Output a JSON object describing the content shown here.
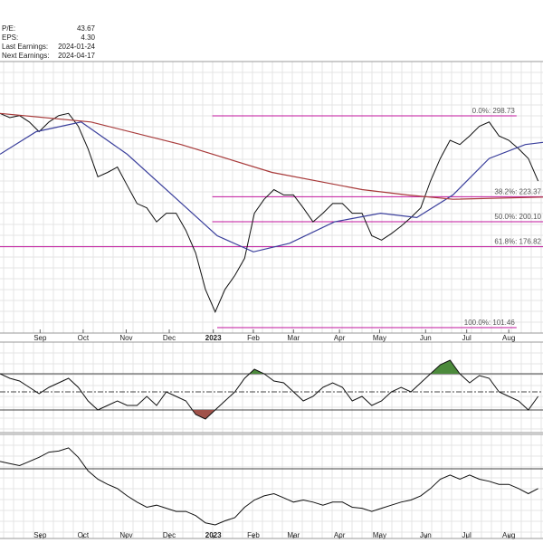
{
  "header": {
    "rows": [
      {
        "label": "P/E:",
        "value": "43.67"
      },
      {
        "label": "EPS:",
        "value": "4.30"
      },
      {
        "label": "Last Earnings:",
        "value": "2024-01-24"
      },
      {
        "label": "Next Earnings:",
        "value": "2024-04-17"
      }
    ]
  },
  "chart_data": [
    {
      "type": "line",
      "xlim": [
        0,
        55.5
      ],
      "ylim": [
        96.4,
        349.3
      ],
      "xticks": [
        {
          "value": 4.1,
          "label": "Sep"
        },
        {
          "value": 8.5,
          "label": "Oct"
        },
        {
          "value": 12.9,
          "label": "Nov"
        },
        {
          "value": 17.3,
          "label": "Dec"
        },
        {
          "value": 21.8,
          "label": "2023"
        },
        {
          "value": 25.9,
          "label": "Feb"
        },
        {
          "value": 30.0,
          "label": "Mar"
        },
        {
          "value": 34.7,
          "label": "Apr"
        },
        {
          "value": 38.8,
          "label": "May"
        },
        {
          "value": 43.5,
          "label": "Jun"
        },
        {
          "value": 47.7,
          "label": "Jul"
        },
        {
          "value": 52.0,
          "label": "Aug"
        }
      ],
      "series": [
        {
          "color": "#111111",
          "x": [
            0,
            1,
            2,
            3,
            4,
            5,
            6,
            7,
            8,
            9,
            10,
            11,
            12,
            13,
            14,
            15,
            16,
            17,
            18,
            19,
            20,
            21,
            22,
            23,
            24,
            25,
            26,
            27,
            28,
            29,
            30,
            31,
            32,
            33,
            34,
            35,
            36,
            37,
            38,
            39,
            40,
            41,
            42,
            43,
            44,
            45,
            46,
            47,
            48,
            49,
            50,
            51,
            52,
            53,
            54,
            55
          ],
          "values": [
            301,
            297,
            299,
            293,
            284,
            293,
            299,
            301,
            289,
            268,
            242,
            246,
            251,
            234,
            217,
            213,
            200,
            208,
            208,
            192,
            171,
            137,
            116,
            137,
            150,
            166,
            208,
            221,
            230,
            225,
            225,
            213,
            200,
            208,
            217,
            217,
            208,
            208,
            187,
            183,
            189,
            196,
            204,
            213,
            238,
            259,
            276,
            272,
            280,
            289,
            293,
            280,
            276,
            268,
            259,
            238
          ]
        },
        {
          "color": "#3a3f9c",
          "x": [
            0,
            3.7,
            8.3,
            13,
            17.6,
            22.2,
            25.9,
            29.6,
            34.2,
            38.9,
            42.6,
            46.3,
            50,
            53.7,
            55.5
          ],
          "values": [
            263,
            284,
            293,
            263,
            225,
            187,
            172,
            180,
            200,
            208,
            204,
            225,
            259,
            272,
            274
          ]
        },
        {
          "color": "#a83a3a",
          "x": [
            0,
            9.3,
            18.5,
            27.8,
            37,
            41.6,
            46.3,
            55.5
          ],
          "values": [
            301,
            293,
            272,
            246,
            230,
            225,
            221,
            223
          ]
        }
      ],
      "fib_levels": [
        {
          "value": 298.73,
          "label": "0.0%: 298.73",
          "x": [
            21.7,
            52.8
          ]
        },
        {
          "value": 223.37,
          "label": "38.2%: 223.37",
          "x": [
            21.7,
            55.5
          ]
        },
        {
          "value": 200.1,
          "label": "50.0%: 200.10",
          "x": [
            21.7,
            55.5
          ]
        },
        {
          "value": 176.82,
          "label": "61.8%: 176.82",
          "x": [
            0,
            55.5
          ]
        },
        {
          "value": 101.46,
          "label": "100.0%: 101.46",
          "x": [
            22.2,
            52.8
          ]
        }
      ],
      "fib_color": "#c0169c",
      "grid": true
    },
    {
      "type": "line",
      "xlim": [
        0,
        55.5
      ],
      "ylim": [
        5,
        105
      ],
      "reference_lines": [
        70,
        50,
        30
      ],
      "upper_fill": "#4c8a3c",
      "lower_fill": "#a0524a",
      "series": [
        {
          "color": "#111111",
          "x": [
            0,
            1,
            2,
            3,
            4,
            5,
            6,
            7,
            8,
            9,
            10,
            11,
            12,
            13,
            14,
            15,
            16,
            17,
            18,
            19,
            20,
            21,
            22,
            23,
            24,
            25,
            26,
            27,
            28,
            29,
            30,
            31,
            32,
            33,
            34,
            35,
            36,
            37,
            38,
            39,
            40,
            41,
            42,
            43,
            44,
            45,
            46,
            47,
            48,
            49,
            50,
            51,
            52,
            53,
            54,
            55
          ],
          "values": [
            70,
            65,
            62,
            55,
            48,
            55,
            60,
            65,
            55,
            40,
            30,
            35,
            40,
            35,
            35,
            45,
            35,
            50,
            45,
            40,
            25,
            20,
            30,
            40,
            50,
            65,
            75,
            70,
            62,
            60,
            50,
            40,
            45,
            55,
            60,
            55,
            40,
            45,
            35,
            40,
            50,
            55,
            50,
            60,
            70,
            80,
            85,
            70,
            60,
            68,
            65,
            50,
            45,
            40,
            30,
            45
          ]
        }
      ],
      "grid": true
    },
    {
      "type": "line",
      "xlim": [
        0,
        55.5
      ],
      "ylim": [
        0,
        100
      ],
      "reference_lines": [
        67
      ],
      "xticks": [
        {
          "value": 4.1,
          "label": "Sep"
        },
        {
          "value": 8.5,
          "label": "Oct"
        },
        {
          "value": 12.9,
          "label": "Nov"
        },
        {
          "value": 17.3,
          "label": "Dec"
        },
        {
          "value": 21.8,
          "label": "2023"
        },
        {
          "value": 25.9,
          "label": "Feb"
        },
        {
          "value": 30.0,
          "label": "Mar"
        },
        {
          "value": 34.7,
          "label": "Apr"
        },
        {
          "value": 38.8,
          "label": "May"
        },
        {
          "value": 43.5,
          "label": "Jun"
        },
        {
          "value": 47.7,
          "label": "Jul"
        },
        {
          "value": 52.0,
          "label": "Aug"
        }
      ],
      "series": [
        {
          "color": "#111111",
          "x": [
            0,
            1,
            2,
            3,
            4,
            5,
            6,
            7,
            8,
            9,
            10,
            11,
            12,
            13,
            14,
            15,
            16,
            17,
            18,
            19,
            20,
            21,
            22,
            23,
            24,
            25,
            26,
            27,
            28,
            29,
            30,
            31,
            32,
            33,
            34,
            35,
            36,
            37,
            38,
            39,
            40,
            41,
            42,
            43,
            44,
            45,
            46,
            47,
            48,
            49,
            50,
            51,
            52,
            53,
            54,
            55
          ],
          "values": [
            74,
            72,
            70,
            74,
            78,
            83,
            84,
            87,
            78,
            65,
            57,
            52,
            48,
            41,
            35,
            30,
            32,
            29,
            26,
            26,
            22,
            15,
            13,
            17,
            20,
            30,
            37,
            41,
            43,
            39,
            35,
            37,
            35,
            32,
            35,
            35,
            30,
            29,
            26,
            29,
            32,
            35,
            37,
            41,
            48,
            57,
            61,
            57,
            61,
            57,
            55,
            52,
            52,
            48,
            43,
            48
          ]
        }
      ],
      "grid": true
    }
  ]
}
